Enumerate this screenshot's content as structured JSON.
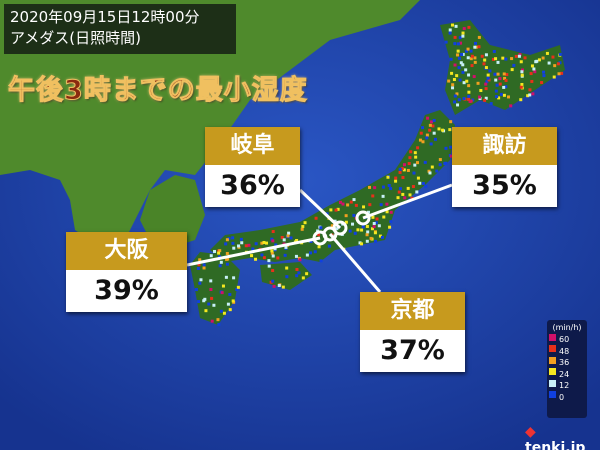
{
  "header": {
    "datetime": "2020年09月15日12時00分",
    "layer": "アメダス(日照時間)"
  },
  "title": "午後3時までの最小湿度",
  "stations": [
    {
      "name": "岐阜",
      "humidity": "36%"
    },
    {
      "name": "諏訪",
      "humidity": "35%"
    },
    {
      "name": "大阪",
      "humidity": "39%"
    },
    {
      "name": "京都",
      "humidity": "37%"
    }
  ],
  "legend": {
    "unit": "(min/h)",
    "items": [
      {
        "label": "60",
        "color": "#d0106a"
      },
      {
        "label": "48",
        "color": "#e8301a"
      },
      {
        "label": "36",
        "color": "#f0a020"
      },
      {
        "label": "24",
        "color": "#f5e820"
      },
      {
        "label": "12",
        "color": "#c8f0f8"
      },
      {
        "label": "0",
        "color": "#1040e0"
      }
    ]
  },
  "logo": "tenki.jp",
  "colors": {
    "ocean": "#1a3fa8",
    "land": "#4f8a2c",
    "header": "#c79a1e",
    "title": "#8a2a10"
  }
}
